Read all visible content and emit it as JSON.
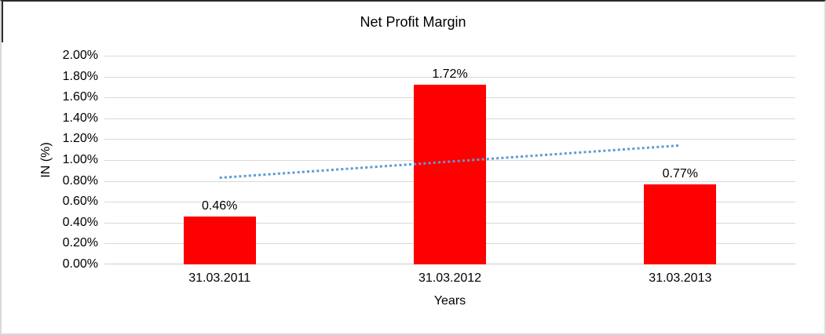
{
  "chart_data": {
    "type": "bar",
    "title": "Net Profit Margin",
    "xlabel": "Years",
    "ylabel": "IN (%)",
    "categories": [
      "31.03.2011",
      "31.03.2012",
      "31.03.2013"
    ],
    "values": [
      0.46,
      1.72,
      0.77
    ],
    "data_labels": [
      "0.46%",
      "1.72%",
      "0.77%"
    ],
    "ylim": [
      0,
      2.0
    ],
    "ytick_step": 0.2,
    "ytick_labels": [
      "0.00%",
      "0.20%",
      "0.40%",
      "0.60%",
      "0.80%",
      "1.00%",
      "1.20%",
      "1.40%",
      "1.60%",
      "1.80%",
      "2.00%"
    ],
    "grid": true,
    "legend": "none",
    "bar_color": "#ff0000",
    "gridline_color": "#d9d9d9",
    "trendline": {
      "type": "linear",
      "style": "dotted",
      "color": "#5b9bd5",
      "start_value": 0.83,
      "end_value": 1.14
    }
  }
}
